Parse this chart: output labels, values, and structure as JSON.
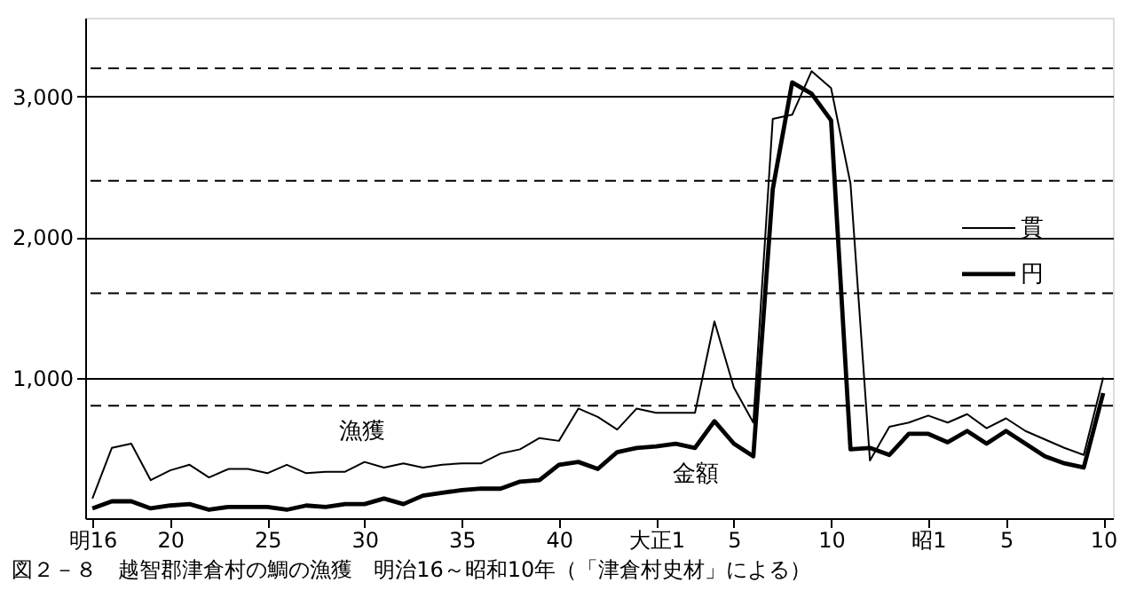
{
  "chart_data": {
    "type": "line",
    "title": "図２－８　越智郡津倉村の鯛の漁獲　明治16～昭和10年（「津倉村史材」による）",
    "categories": [
      "明16",
      null,
      null,
      null,
      "20",
      null,
      null,
      null,
      null,
      "25",
      null,
      null,
      null,
      null,
      "30",
      null,
      null,
      null,
      null,
      "35",
      null,
      null,
      null,
      null,
      "40",
      null,
      null,
      null,
      null,
      "大正1",
      null,
      null,
      null,
      "5",
      null,
      null,
      null,
      null,
      "10",
      null,
      null,
      null,
      null,
      "昭1",
      null,
      null,
      null,
      "5",
      null,
      null,
      null,
      null,
      "10"
    ],
    "series": [
      {
        "name": "貫",
        "color": "#000000",
        "values": [
          140,
          500,
          530,
          270,
          340,
          380,
          290,
          350,
          350,
          320,
          380,
          320,
          330,
          330,
          400,
          360,
          390,
          360,
          380,
          390,
          390,
          460,
          490,
          570,
          550,
          780,
          720,
          630,
          780,
          750,
          750,
          750,
          1400,
          930,
          680,
          2840,
          2870,
          3180,
          3060,
          2380,
          410,
          650,
          680,
          730,
          680,
          740,
          640,
          710,
          620,
          560,
          500,
          450,
          1000
        ]
      },
      {
        "name": "円",
        "color": "#000000",
        "values": [
          70,
          120,
          120,
          70,
          90,
          100,
          60,
          80,
          80,
          80,
          60,
          90,
          80,
          100,
          100,
          140,
          100,
          160,
          180,
          200,
          210,
          210,
          260,
          270,
          380,
          400,
          350,
          470,
          500,
          510,
          530,
          500,
          690,
          530,
          440,
          2340,
          3100,
          3020,
          2830,
          490,
          500,
          450,
          600,
          600,
          540,
          620,
          530,
          620,
          530,
          440,
          390,
          360,
          890
        ]
      }
    ],
    "annotations": [
      "漁獲",
      "金額"
    ],
    "ylim": [
      0,
      3560
    ],
    "yticks": [
      {
        "value": 1000,
        "label": "1,000"
      },
      {
        "value": 2000,
        "label": "2,000"
      },
      {
        "value": 3000,
        "label": "3,000"
      }
    ],
    "ref_lines": [
      {
        "axis": "y",
        "value": 800,
        "line_style": "dashed"
      },
      {
        "axis": "y",
        "value": 1600,
        "line_style": "dashed"
      },
      {
        "axis": "y",
        "value": 2400,
        "line_style": "dashed"
      },
      {
        "axis": "y",
        "value": 3200,
        "line_style": "dashed"
      }
    ],
    "grid": "y",
    "legend": "right",
    "marker": "none",
    "line_style": "solid"
  }
}
